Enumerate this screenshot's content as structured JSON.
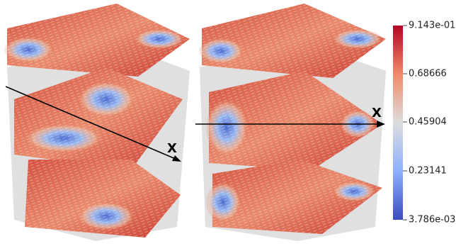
{
  "colorbar": {
    "labels": [
      "9.143e-01",
      "0.68666",
      "0.45904",
      "0.23141",
      "3.786e-03"
    ]
  },
  "axes": [
    {
      "label": "X"
    },
    {
      "label": "X"
    }
  ]
}
